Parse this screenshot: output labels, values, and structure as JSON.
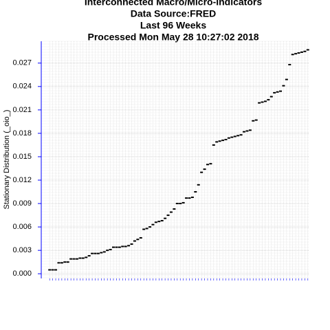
{
  "chart_data": {
    "type": "scatter",
    "title": [
      "Interconnected Macro/Micro-Indicators",
      "Data Source:FRED",
      "Last  96  Weeks",
      "Processed  Mon May 28 10:27:02 2018"
    ],
    "ylabel": "Stationary Distribution (_oio_)",
    "categories": [
      null,
      null,
      null,
      null,
      null,
      null,
      null,
      null,
      null,
      null,
      null,
      null,
      null,
      null,
      null,
      null,
      null,
      null,
      null,
      null,
      null,
      null,
      null,
      null,
      null,
      null,
      null,
      null,
      null,
      null,
      null,
      null,
      null,
      null,
      null,
      null,
      null,
      null,
      null,
      null,
      null,
      null,
      null,
      null,
      null,
      null,
      null,
      null,
      null,
      null,
      null,
      null,
      null,
      null,
      null,
      null,
      null,
      null,
      null,
      null,
      null,
      null,
      null,
      null,
      null,
      null,
      null,
      null,
      null,
      null,
      null,
      null,
      null,
      null,
      null,
      null,
      null,
      null,
      null,
      null,
      null,
      null,
      null,
      null,
      null,
      null
    ],
    "values": [
      0.0005,
      0.0005,
      0.0005,
      0.0014,
      0.0014,
      0.0015,
      0.0015,
      0.0019,
      0.0019,
      0.0019,
      0.002,
      0.002,
      0.0021,
      0.0023,
      0.0026,
      0.0026,
      0.0026,
      0.0027,
      0.0028,
      0.003,
      0.0031,
      0.0034,
      0.0034,
      0.0034,
      0.0035,
      0.0035,
      0.0036,
      0.0038,
      0.0042,
      0.0044,
      0.0046,
      0.0057,
      0.0058,
      0.006,
      0.0063,
      0.0066,
      0.0067,
      0.0068,
      0.0071,
      0.0075,
      0.0079,
      0.0083,
      0.009,
      0.009,
      0.0091,
      0.0097,
      0.0097,
      0.0098,
      0.0105,
      0.0114,
      0.013,
      0.0134,
      0.014,
      0.0141,
      0.0165,
      0.0169,
      0.017,
      0.0171,
      0.0172,
      0.0174,
      0.0175,
      0.0176,
      0.0177,
      0.0178,
      0.0182,
      0.0183,
      0.0184,
      0.0196,
      0.0197,
      0.0219,
      0.022,
      0.0221,
      0.0223,
      0.0227,
      0.0232,
      0.0233,
      0.0234,
      0.0241,
      0.0249,
      0.0268,
      0.0281,
      0.0282,
      0.0283,
      0.0284,
      0.0285,
      0.0287
    ],
    "color": "#000000",
    "ylim": [
      -0.0006,
      0.0298
    ],
    "yticks": [
      {
        "value": 0,
        "label": "0.000"
      },
      0.003,
      0.006,
      0.009,
      0.012,
      0.015,
      0.018,
      0.021,
      0.024,
      0.027
    ],
    "grid": true
  }
}
